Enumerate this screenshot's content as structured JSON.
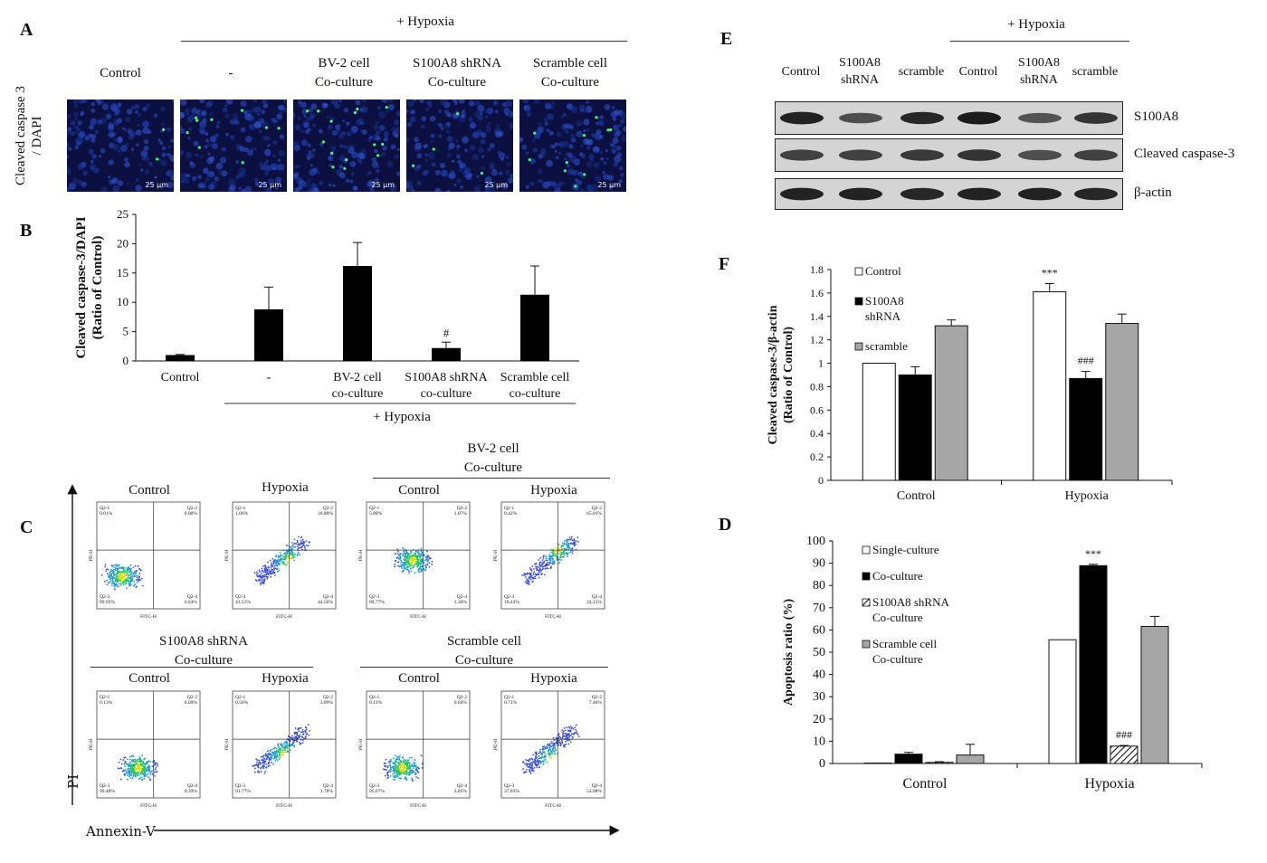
{
  "panelA": {
    "letter": "A",
    "hypoxia_label": "+ Hypoxia",
    "side_label_line1": "Cleaved caspase 3",
    "side_label_line2": "/ DAPI",
    "columns": [
      {
        "line1": "Control",
        "line2": ""
      },
      {
        "line1": "-",
        "line2": ""
      },
      {
        "line1": "BV-2 cell",
        "line2": "Co-culture"
      },
      {
        "line1": "S100A8 shRNA",
        "line2": "Co-culture"
      },
      {
        "line1": "Scramble cell",
        "line2": "Co-culture"
      }
    ],
    "scale": "25 μm",
    "green_dots_per_image": [
      2,
      9,
      14,
      4,
      10
    ]
  },
  "panelC": {
    "letter": "C",
    "x_axis": "Annexin-V",
    "y_axis": "PI",
    "groups": [
      {
        "title_line1": "",
        "title_line2": ""
      },
      {
        "title_line1": "BV-2 cell",
        "title_line2": "Co-culture"
      },
      {
        "title_line1": "S100A8 shRNA",
        "title_line2": "Co-culture"
      },
      {
        "title_line1": "Scramble cell",
        "title_line2": "Co-culture"
      }
    ],
    "plots": [
      {
        "title": "Control",
        "q1": "Q2-1\n0.01%",
        "q2": "Q2-2\n0.00%",
        "q3": "Q2-3\n99.95%",
        "q4": "Q2-4\n0.04%"
      },
      {
        "title": "Hypoxia",
        "q1": "Q2-1\n1.06%",
        "q2": "Q2-2\n10.88%",
        "q3": "Q2-3\n43.51%",
        "q4": "Q2-4\n44.56%"
      },
      {
        "title": "Control",
        "q1": "Q2-1\n5.88%",
        "q2": "Q2-2\n1.07%",
        "q3": "Q2-3\n89.77%",
        "q4": "Q2-4\n3.36%"
      },
      {
        "title": "Hypoxia",
        "q1": "Q2-1\n0.42%",
        "q2": "Q2-2\n65.01%",
        "q3": "Q2-3\n10.43%",
        "q4": "Q2-4\n24.15%"
      },
      {
        "title": "Control",
        "q1": "Q2-1\n0.13%",
        "q2": "Q2-2\n0.00%",
        "q3": "Q2-3\n99.48%",
        "q4": "Q2-4\n0.39%"
      },
      {
        "title": "Hypoxia",
        "q1": "Q2-1\n0.56%",
        "q2": "Q2-2\n3.89%",
        "q3": "Q2-3\n91.77%",
        "q4": "Q2-4\n3.78%"
      },
      {
        "title": "Control",
        "q1": "Q2-1\n0.13%",
        "q2": "Q2-2\n0.04%",
        "q3": "Q2-3\n95.07%",
        "q4": "Q2-4\n3.85%"
      },
      {
        "title": "Hypoxia",
        "q1": "Q2-1\n0.71%",
        "q2": "Q2-2\n7.46%",
        "q3": "Q2-3\n37.83%",
        "q4": "Q2-4\n53.98%"
      }
    ],
    "fl_x": "FITC-H",
    "fl_y": "PE-H"
  },
  "panelE": {
    "letter": "E",
    "hypoxia_label": "+ Hypoxia",
    "lanes": [
      {
        "line1": "Control",
        "line2": ""
      },
      {
        "line1": "S100A8",
        "line2": "shRNA"
      },
      {
        "line1": "scramble",
        "line2": ""
      },
      {
        "line1": "Control",
        "line2": ""
      },
      {
        "line1": "S100A8",
        "line2": "shRNA"
      },
      {
        "line1": "scramble",
        "line2": ""
      }
    ],
    "blots": [
      {
        "label": "S100A8",
        "intensity": [
          0.95,
          0.6,
          0.9,
          1.0,
          0.55,
          0.8
        ]
      },
      {
        "label": "Cleaved caspase-3",
        "intensity": [
          0.7,
          0.7,
          0.75,
          0.8,
          0.6,
          0.7
        ]
      },
      {
        "label": "β-actin",
        "intensity": [
          0.95,
          0.95,
          0.9,
          0.95,
          0.95,
          0.9
        ]
      }
    ]
  },
  "chart_data": [
    {
      "id": "B",
      "letter": "B",
      "type": "bar",
      "ylabel_line1": "Cleaved caspase-3/DAPI",
      "ylabel_line2": "(Ratio of Control)",
      "ylim": [
        0,
        25
      ],
      "yticks": [
        0,
        5,
        10,
        15,
        20,
        25
      ],
      "categories": [
        {
          "line1": "Control",
          "line2": ""
        },
        {
          "line1": "-",
          "line2": ""
        },
        {
          "line1": "BV-2 cell",
          "line2": "co-culture"
        },
        {
          "line1": "S100A8 shRNA",
          "line2": "co-culture"
        },
        {
          "line1": "Scramble cell",
          "line2": "co-culture"
        }
      ],
      "values": [
        1.0,
        8.8,
        16.2,
        2.2,
        11.3
      ],
      "errors": [
        0.1,
        3.8,
        4.0,
        1.0,
        4.9
      ],
      "annotations": [
        "",
        "",
        "",
        "#",
        ""
      ],
      "group_label": "+ Hypoxia",
      "color": "#000000"
    },
    {
      "id": "F",
      "letter": "F",
      "type": "bar",
      "ylabel_line1": "Cleaved caspase-3/β-actin",
      "ylabel_line2": "(Ratio of Control)",
      "ylim": [
        0,
        1.8
      ],
      "yticks": [
        "0",
        "0.2",
        "0.4",
        "0.6",
        "0.8",
        "1",
        "1.2",
        "1.4",
        "1.6",
        "1.8"
      ],
      "categories": [
        "Control",
        "Hypoxia"
      ],
      "series": [
        {
          "name": "Control",
          "legend_lines": [
            "Control"
          ],
          "values": [
            1.0,
            1.61
          ],
          "errors": [
            0.0,
            0.07
          ],
          "fill": "#ffffff",
          "annotations": [
            "",
            "***"
          ]
        },
        {
          "name": "S100A8 shRNA",
          "legend_lines": [
            "S100A8",
            "shRNA"
          ],
          "values": [
            0.9,
            0.87
          ],
          "errors": [
            0.07,
            0.06
          ],
          "fill": "#000000",
          "annotations": [
            "",
            "###"
          ]
        },
        {
          "name": "scramble",
          "legend_lines": [
            "scramble"
          ],
          "values": [
            1.32,
            1.34
          ],
          "errors": [
            0.05,
            0.08
          ],
          "fill": "#a6a6a6",
          "annotations": [
            "",
            ""
          ]
        }
      ]
    },
    {
      "id": "D",
      "letter": "D",
      "type": "bar",
      "ylabel_line1": "Apoptosis ratio (%)",
      "ylabel_line2": "",
      "ylim": [
        0,
        100
      ],
      "yticks": [
        0,
        10,
        20,
        30,
        40,
        50,
        60,
        70,
        80,
        90,
        100
      ],
      "categories": [
        "Control",
        "Hypoxia"
      ],
      "series": [
        {
          "name": "Single-culture",
          "legend_lines": [
            "Single-culture"
          ],
          "values": [
            0.2,
            55.6
          ],
          "errors": [
            0,
            0
          ],
          "fill": "#ffffff",
          "annotations": [
            "",
            ""
          ]
        },
        {
          "name": "Co-culture",
          "legend_lines": [
            "Co-culture"
          ],
          "values": [
            4.2,
            88.9
          ],
          "errors": [
            0.8,
            0.6
          ],
          "fill": "#000000",
          "annotations": [
            "",
            "***"
          ]
        },
        {
          "name": "S100A8 shRNA Co-culture",
          "legend_lines": [
            "S100A8 shRNA",
            "Co-culture"
          ],
          "values": [
            0.5,
            7.8
          ],
          "errors": [
            0.3,
            0.3
          ],
          "fill": "hatch",
          "annotations": [
            "",
            "###"
          ]
        },
        {
          "name": "Scramble cell Co-culture",
          "legend_lines": [
            "Scramble cell",
            "Co-culture"
          ],
          "values": [
            3.8,
            61.6
          ],
          "errors": [
            4.8,
            4.5
          ],
          "fill": "#a6a6a6",
          "annotations": [
            "",
            ""
          ]
        }
      ]
    }
  ]
}
